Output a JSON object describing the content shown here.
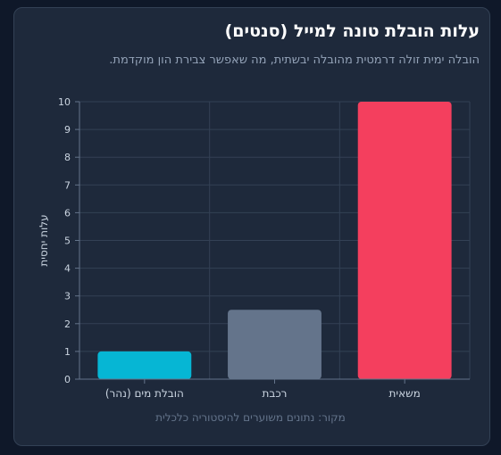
{
  "title": "עלות הובלת טונה למייל (סנטים)",
  "subtitle": "הובלה ימית זולה דרמטית מהובלה יבשתית, מה שאפשר צבירת הון מוקדמת.",
  "source": "מקור: נתונים משוערים להיסטוריה כלכלית",
  "colors": {
    "background": "#0f1829",
    "card": "#1e293b",
    "grid": "#334155",
    "water": "#06b6d4",
    "rail": "#64748b",
    "truck": "#f43f5e"
  },
  "chart_data": {
    "type": "bar",
    "categories": [
      "הובלת מים (נהר)",
      "רכבת",
      "משאית"
    ],
    "values": [
      1,
      2.5,
      10
    ],
    "ylabel": "עלות יחסית",
    "xlabel": "",
    "ylim": [
      0,
      10
    ],
    "yticks": [
      0,
      1,
      2,
      3,
      4,
      5,
      6,
      7,
      8,
      9,
      10
    ],
    "grid": true,
    "legend": "none"
  }
}
